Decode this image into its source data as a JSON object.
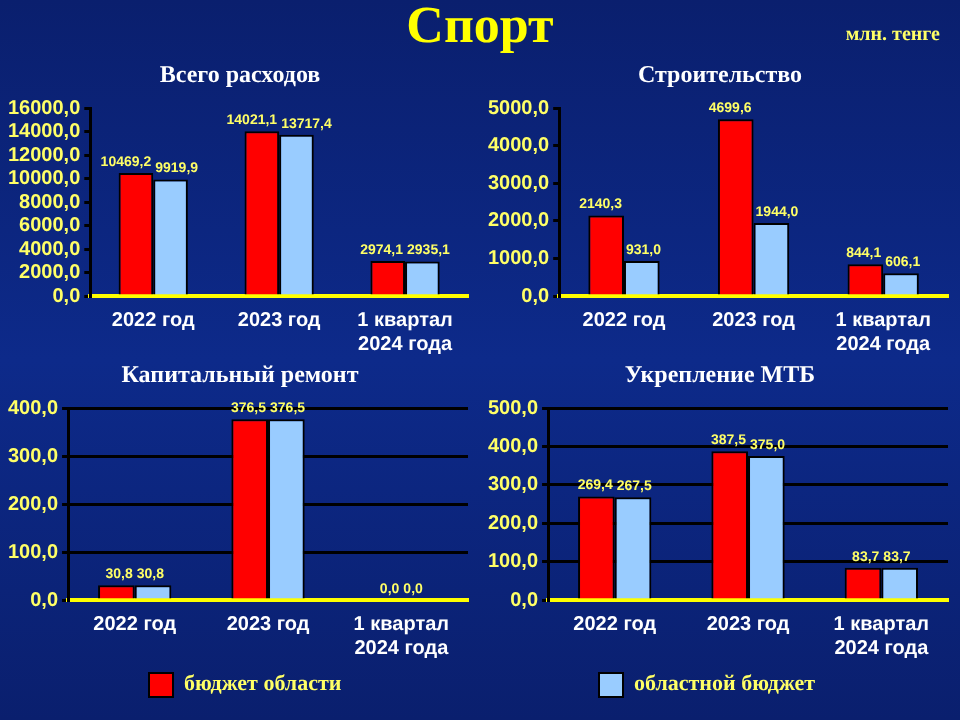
{
  "chart_data": [
    {
      "type": "bar",
      "title": "Всего расходов",
      "annotations": [
        "Спорт",
        "млн. тенге"
      ],
      "legend": "bottom",
      "grid": false,
      "categories": [
        "2022 год",
        "2023 год",
        "1 квартал\n2024 года"
      ],
      "series": [
        {
          "name": "бюджет области",
          "color": "#ff0000",
          "values": [
            10469.2,
            14021.1,
            2974.1
          ],
          "value_labels": [
            "10469,2",
            "14021,1",
            "2974,1"
          ]
        },
        {
          "name": "областной бюджет",
          "color": "#99ccff",
          "values": [
            9919.9,
            13717.4,
            2935.1
          ],
          "value_labels": [
            "9919,9",
            "13717,4",
            "2935,1"
          ]
        }
      ],
      "ylim": [
        0,
        16000
      ],
      "yticks": [
        {
          "value": 0,
          "label": "0,0"
        },
        {
          "value": 2000,
          "label": "2000,0"
        },
        {
          "value": 4000,
          "label": "4000,0"
        },
        {
          "value": 6000,
          "label": "6000,0"
        },
        {
          "value": 8000,
          "label": "8000,0"
        },
        {
          "value": 10000,
          "label": "10000,0"
        },
        {
          "value": 12000,
          "label": "12000,0"
        },
        {
          "value": 14000,
          "label": "14000,0"
        },
        {
          "value": 16000,
          "label": "16000,0"
        }
      ]
    },
    {
      "type": "bar",
      "title": "Строительство",
      "grid": false,
      "categories": [
        "2022 год",
        "2023 год",
        "1 квартал\n2024 года"
      ],
      "series": [
        {
          "color": "#ff0000",
          "values": [
            2140.3,
            4699.6,
            844.1
          ],
          "value_labels": [
            "2140,3",
            "4699,6",
            "844,1"
          ]
        },
        {
          "color": "#99ccff",
          "values": [
            931.0,
            1944.0,
            606.1
          ],
          "value_labels": [
            "931,0",
            "1944,0",
            "606,1"
          ]
        }
      ],
      "ylim": [
        0,
        5000
      ],
      "yticks": [
        {
          "value": 0,
          "label": "0,0"
        },
        {
          "value": 1000,
          "label": "1000,0"
        },
        {
          "value": 2000,
          "label": "2000,0"
        },
        {
          "value": 3000,
          "label": "3000,0"
        },
        {
          "value": 4000,
          "label": "4000,0"
        },
        {
          "value": 5000,
          "label": "5000,0"
        }
      ]
    },
    {
      "type": "bar",
      "title": "Капитальный ремонт",
      "grid": "y",
      "categories": [
        "2022 год",
        "2023 год",
        "1 квартал\n2024 года"
      ],
      "series": [
        {
          "color": "#ff0000",
          "values": [
            30.8,
            376.5,
            0
          ],
          "value_labels": [
            "30,8",
            "376,5",
            "0,0"
          ]
        },
        {
          "color": "#99ccff",
          "values": [
            30.8,
            376.5,
            0
          ],
          "value_labels": [
            "30,8",
            "376,5",
            "0,0"
          ]
        }
      ],
      "ylim": [
        0,
        400
      ],
      "yticks": [
        {
          "value": 0,
          "label": "0,0"
        },
        {
          "value": 100,
          "label": "100,0"
        },
        {
          "value": 200,
          "label": "200,0"
        },
        {
          "value": 300,
          "label": "300,0"
        },
        {
          "value": 400,
          "label": "400,0"
        }
      ]
    },
    {
      "type": "bar",
      "title": "Укрепление МТБ",
      "grid": "y",
      "categories": [
        "2022 год",
        "2023 год",
        "1 квартал\n2024 года"
      ],
      "series": [
        {
          "color": "#ff0000",
          "values": [
            269.4,
            387.5,
            83.7
          ],
          "value_labels": [
            "269,4",
            "387,5",
            "83,7"
          ]
        },
        {
          "color": "#99ccff",
          "values": [
            267.5,
            375.0,
            83.7
          ],
          "value_labels": [
            "267,5",
            "375,0",
            "83,7"
          ]
        }
      ],
      "ylim": [
        0,
        500
      ],
      "yticks": [
        {
          "value": 0,
          "label": "0,0"
        },
        {
          "value": 100,
          "label": "100,0"
        },
        {
          "value": 200,
          "label": "200,0"
        },
        {
          "value": 300,
          "label": "300,0"
        },
        {
          "value": 400,
          "label": "400,0"
        },
        {
          "value": 500,
          "label": "500,0"
        }
      ]
    }
  ]
}
